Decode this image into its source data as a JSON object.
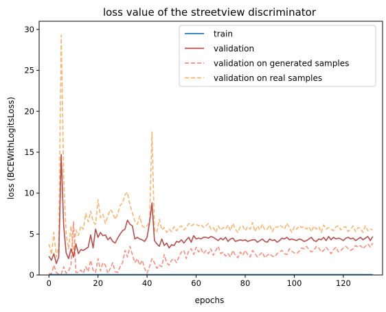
{
  "chart_data": {
    "type": "line",
    "title": "loss value of the streetview discriminator",
    "xlabel": "epochs",
    "ylabel": "loss (BCEWithLogitsLoss)",
    "xlim": [
      -4,
      136
    ],
    "ylim": [
      0,
      31
    ],
    "xticks": [
      0,
      20,
      40,
      60,
      80,
      100,
      120
    ],
    "yticks": [
      0,
      5,
      10,
      15,
      20,
      25,
      30
    ],
    "grid": false,
    "legend_position": "upper-right",
    "series": [
      {
        "name": "train",
        "color": "#1f77b4",
        "style": "solid",
        "x": [
          0,
          132
        ],
        "y": [
          0.05,
          0.05
        ]
      },
      {
        "name": "validation",
        "color": "#b94a48",
        "style": "solid",
        "x": [
          0,
          1,
          2,
          3,
          4,
          5,
          6,
          7,
          8,
          9,
          10,
          11,
          12,
          13,
          14,
          15,
          16,
          17,
          18,
          19,
          20,
          21,
          22,
          23,
          24,
          25,
          26,
          27,
          28,
          29,
          30,
          31,
          32,
          33,
          34,
          35,
          36,
          37,
          38,
          39,
          40,
          41,
          42,
          43,
          44,
          45,
          46,
          47,
          48,
          49,
          50,
          51,
          52,
          53,
          54,
          55,
          56,
          57,
          58,
          59,
          60,
          61,
          62,
          63,
          64,
          65,
          66,
          67,
          68,
          69,
          70,
          71,
          72,
          73,
          74,
          75,
          76,
          77,
          78,
          79,
          80,
          81,
          82,
          83,
          84,
          85,
          86,
          87,
          88,
          89,
          90,
          91,
          92,
          93,
          94,
          95,
          96,
          97,
          98,
          99,
          100,
          101,
          102,
          103,
          104,
          105,
          106,
          107,
          108,
          109,
          110,
          111,
          112,
          113,
          114,
          115,
          116,
          117,
          118,
          119,
          120,
          121,
          122,
          123,
          124,
          125,
          126,
          127,
          128,
          129,
          130,
          131,
          132
        ],
        "y": [
          2.3,
          1.8,
          2.6,
          1.4,
          2.2,
          14.7,
          6.0,
          2.7,
          2.0,
          3.2,
          2.2,
          3.8,
          2.6,
          3.1,
          3.0,
          3.2,
          3.4,
          4.9,
          3.3,
          5.6,
          4.6,
          5.2,
          4.8,
          4.9,
          4.3,
          4.6,
          4.1,
          3.9,
          4.5,
          5.0,
          5.4,
          5.6,
          6.7,
          6.2,
          6.0,
          4.4,
          4.6,
          4.4,
          4.3,
          4.1,
          4.6,
          6.4,
          8.8,
          4.2,
          3.8,
          3.5,
          4.4,
          3.6,
          3.9,
          3.3,
          3.7,
          3.6,
          4.1,
          4.0,
          4.3,
          3.9,
          4.3,
          4.6,
          4.0,
          4.8,
          4.4,
          4.5,
          4.4,
          4.6,
          4.6,
          4.5,
          4.7,
          4.6,
          4.4,
          4.2,
          4.5,
          4.3,
          4.6,
          4.1,
          4.4,
          4.5,
          4.1,
          4.2,
          4.3,
          4.2,
          4.3,
          4.1,
          4.2,
          4.3,
          4.3,
          4.0,
          4.2,
          4.4,
          4.1,
          4.0,
          4.4,
          4.2,
          4.3,
          4.0,
          4.2,
          4.5,
          4.4,
          4.6,
          4.3,
          4.4,
          4.3,
          4.2,
          4.4,
          4.3,
          4.1,
          4.2,
          4.4,
          4.6,
          4.2,
          4.1,
          4.4,
          4.3,
          4.6,
          4.2,
          4.7,
          4.3,
          4.6,
          4.4,
          4.5,
          4.4,
          4.2,
          4.5,
          4.6,
          4.4,
          4.5,
          4.2,
          4.4,
          4.6,
          4.3,
          4.5,
          4.7,
          4.2,
          4.7
        ]
      },
      {
        "name": "validation on generated samples",
        "color": "#ff8a7a",
        "style": "dashed",
        "x": [
          0,
          1,
          2,
          3,
          4,
          5,
          6,
          7,
          8,
          9,
          10,
          11,
          12,
          13,
          14,
          15,
          16,
          17,
          18,
          19,
          20,
          21,
          22,
          23,
          24,
          25,
          26,
          27,
          28,
          29,
          30,
          31,
          32,
          33,
          34,
          35,
          36,
          37,
          38,
          39,
          40,
          41,
          42,
          43,
          44,
          45,
          46,
          47,
          48,
          49,
          50,
          51,
          52,
          53,
          54,
          55,
          56,
          57,
          58,
          59,
          60,
          61,
          62,
          63,
          64,
          65,
          66,
          67,
          68,
          69,
          70,
          71,
          72,
          73,
          74,
          75,
          76,
          77,
          78,
          79,
          80,
          81,
          82,
          83,
          84,
          85,
          86,
          87,
          88,
          89,
          90,
          91,
          92,
          93,
          94,
          95,
          96,
          97,
          98,
          99,
          100,
          101,
          102,
          103,
          104,
          105,
          106,
          107,
          108,
          109,
          110,
          111,
          112,
          113,
          114,
          115,
          116,
          117,
          118,
          119,
          120,
          121,
          122,
          123,
          124,
          125,
          126,
          127,
          128,
          129,
          130,
          131,
          132
        ],
        "y": [
          0.2,
          0.1,
          1.2,
          0.3,
          0.1,
          0.1,
          1.0,
          0.2,
          0.5,
          1.2,
          6.5,
          0.3,
          0.3,
          0.6,
          0.2,
          1.0,
          0.4,
          1.8,
          0.6,
          0.3,
          2.0,
          0.5,
          1.5,
          1.2,
          0.2,
          0.8,
          1.5,
          0.4,
          0.3,
          1.0,
          1.5,
          3.0,
          2.2,
          3.5,
          2.5,
          1.5,
          2.0,
          1.2,
          1.8,
          0.8,
          0.2,
          1.0,
          2.0,
          1.5,
          0.8,
          1.2,
          1.0,
          2.5,
          1.5,
          1.2,
          1.8,
          2.0,
          1.5,
          2.2,
          2.8,
          3.0,
          2.0,
          3.0,
          3.2,
          2.5,
          3.4,
          2.8,
          3.2,
          2.6,
          3.0,
          2.6,
          3.2,
          2.4,
          3.0,
          3.5,
          2.6,
          2.8,
          2.3,
          2.6,
          2.2,
          3.0,
          2.4,
          2.1,
          2.8,
          2.4,
          3.0,
          2.5,
          2.2,
          3.0,
          2.6,
          2.2,
          2.5,
          2.8,
          2.1,
          2.4,
          2.6,
          2.3,
          2.2,
          2.6,
          2.8,
          3.0,
          2.6,
          2.5,
          3.2,
          2.9,
          2.7,
          2.6,
          2.9,
          3.3,
          3.2,
          3.5,
          3.1,
          2.8,
          3.0,
          3.5,
          3.3,
          2.8,
          3.0,
          3.4,
          3.0,
          2.6,
          3.1,
          3.4,
          2.8,
          3.0,
          3.3,
          3.5,
          3.2,
          3.0,
          3.2,
          3.6,
          3.4,
          3.6,
          3.2,
          3.5,
          3.8,
          3.4,
          3.9
        ]
      },
      {
        "name": "validation on real samples",
        "color": "#ffb26b",
        "style": "dashed",
        "x": [
          0,
          1,
          2,
          3,
          4,
          5,
          6,
          7,
          8,
          9,
          10,
          11,
          12,
          13,
          14,
          15,
          16,
          17,
          18,
          19,
          20,
          21,
          22,
          23,
          24,
          25,
          26,
          27,
          28,
          29,
          30,
          31,
          32,
          33,
          34,
          35,
          36,
          37,
          38,
          39,
          40,
          41,
          42,
          43,
          44,
          45,
          46,
          47,
          48,
          49,
          50,
          51,
          52,
          53,
          54,
          55,
          56,
          57,
          58,
          59,
          60,
          61,
          62,
          63,
          64,
          65,
          66,
          67,
          68,
          69,
          70,
          71,
          72,
          73,
          74,
          75,
          76,
          77,
          78,
          79,
          80,
          81,
          82,
          83,
          84,
          85,
          86,
          87,
          88,
          89,
          90,
          91,
          92,
          93,
          94,
          95,
          96,
          97,
          98,
          99,
          100,
          101,
          102,
          103,
          104,
          105,
          106,
          107,
          108,
          109,
          110,
          111,
          112,
          113,
          114,
          115,
          116,
          117,
          118,
          119,
          120,
          121,
          122,
          123,
          124,
          125,
          126,
          127,
          128,
          129,
          130,
          131,
          132
        ],
        "y": [
          3.8,
          2.5,
          5.2,
          2.2,
          3.5,
          29.3,
          12.0,
          5.0,
          3.2,
          6.0,
          2.6,
          5.5,
          4.8,
          6.0,
          5.6,
          7.5,
          6.5,
          7.8,
          6.5,
          6.2,
          9.2,
          7.0,
          7.4,
          6.3,
          7.2,
          8.0,
          7.6,
          6.8,
          7.4,
          8.5,
          8.8,
          9.8,
          10.1,
          8.6,
          7.6,
          6.6,
          6.2,
          7.2,
          6.0,
          5.8,
          6.0,
          6.5,
          17.5,
          5.5,
          5.2,
          6.8,
          5.5,
          5.8,
          5.2,
          5.6,
          5.3,
          5.9,
          5.4,
          5.8,
          6.0,
          5.5,
          5.8,
          6.3,
          6.0,
          6.2,
          6.2,
          6.0,
          6.2,
          5.8,
          6.0,
          6.3,
          5.6,
          5.8,
          5.2,
          6.0,
          5.5,
          5.8,
          5.6,
          6.1,
          5.4,
          6.3,
          5.6,
          5.2,
          5.9,
          6.0,
          5.4,
          5.9,
          5.6,
          6.4,
          5.3,
          6.0,
          5.5,
          6.2,
          5.5,
          5.6,
          6.1,
          5.3,
          5.9,
          5.8,
          6.1,
          5.9,
          5.6,
          6.3,
          5.8,
          5.2,
          5.9,
          5.6,
          6.0,
          5.8,
          5.9,
          5.6,
          5.9,
          5.3,
          6.0,
          5.6,
          5.9,
          5.2,
          6.1,
          5.6,
          5.8,
          5.6,
          5.4,
          5.9,
          6.0,
          5.5,
          5.8,
          5.9,
          5.3,
          5.6,
          6.0,
          5.3,
          5.8,
          5.7,
          5.2,
          6.0,
          5.4,
          5.6,
          5.5
        ]
      }
    ]
  }
}
